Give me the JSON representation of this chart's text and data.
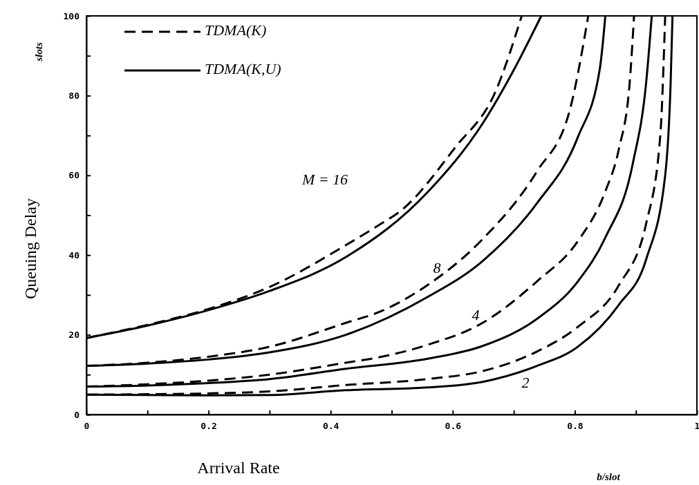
{
  "chart_data": {
    "type": "line",
    "xlabel": "Arrival Rate",
    "ylabel": "Queuing Delay",
    "xlim": [
      0,
      1
    ],
    "ylim": [
      0,
      100
    ],
    "xticks": [
      0,
      {
        "value": 0.1,
        "label": null
      },
      0.2,
      {
        "value": 0.3,
        "label": null
      },
      0.4,
      {
        "value": 0.5,
        "label": null
      },
      0.6,
      {
        "value": 0.7,
        "label": null
      },
      0.8,
      {
        "value": 0.9,
        "label": null
      },
      1
    ],
    "yticks": [
      0,
      {
        "value": 10,
        "label": null
      },
      20,
      {
        "value": 30,
        "label": null
      },
      40,
      {
        "value": 50,
        "label": null
      },
      60,
      {
        "value": 70,
        "label": null
      },
      80,
      {
        "value": 90,
        "label": null
      },
      100
    ],
    "grid": false,
    "legend": "top left",
    "marker": "none",
    "series": [
      {
        "name": "TDMA(K)",
        "color": "#000000",
        "line_style": "dashed",
        "x": [
          0,
          0.1,
          0.2,
          0.3,
          0.425,
          0.484,
          0.514,
          0.604,
          0.67,
          0.713
        ],
        "values": [
          19.2,
          22.5,
          26.5,
          32,
          42.5,
          48,
          51,
          67,
          81,
          100
        ]
      },
      {
        "name": "TDMA(K,U)",
        "color": "#000000",
        "line_style": "solid",
        "x": [
          0,
          0.1,
          0.2,
          0.3,
          0.425,
          0.559,
          0.649,
          0.702,
          0.745
        ],
        "values": [
          19.2,
          22.3,
          26.2,
          31,
          39.5,
          55.8,
          73,
          87,
          100
        ]
      },
      {
        "color": "#000000",
        "line_style": "dashed",
        "x": [
          0,
          0.1,
          0.2,
          0.3,
          0.425,
          0.484,
          0.559,
          0.649,
          0.738,
          0.792,
          0.822
        ],
        "values": [
          12.2,
          13,
          14.5,
          17,
          23,
          26,
          32.5,
          44,
          61,
          76.5,
          100
        ]
      },
      {
        "color": "#000000",
        "line_style": "solid",
        "x": [
          0,
          0.1,
          0.2,
          0.3,
          0.425,
          0.559,
          0.649,
          0.738,
          0.805,
          0.841,
          0.85
        ],
        "values": [
          12.2,
          12.8,
          13.8,
          15.6,
          20,
          29.5,
          38.5,
          53,
          69.6,
          86.8,
          100
        ]
      },
      {
        "color": "#000000",
        "line_style": "dashed",
        "x": [
          0,
          0.1,
          0.2,
          0.3,
          0.425,
          0.484,
          0.559,
          0.649,
          0.738,
          0.805,
          0.85,
          0.872,
          0.89,
          0.897
        ],
        "values": [
          7,
          7.6,
          8.5,
          10,
          13,
          14.5,
          17.5,
          23,
          33.4,
          43.5,
          56,
          66.5,
          83.5,
          100
        ]
      },
      {
        "color": "#000000",
        "line_style": "solid",
        "x": [
          0,
          0.1,
          0.2,
          0.3,
          0.425,
          0.559,
          0.649,
          0.738,
          0.805,
          0.85,
          0.895,
          0.917,
          0.926
        ],
        "values": [
          7,
          7.3,
          7.9,
          8.9,
          11.5,
          14,
          17.2,
          24,
          33.4,
          44.4,
          63,
          83.5,
          100
        ]
      },
      {
        "color": "#000000",
        "line_style": "dashed",
        "x": [
          0,
          0.1,
          0.2,
          0.3,
          0.425,
          0.559,
          0.649,
          0.738,
          0.805,
          0.872,
          0.917,
          0.94,
          0.948
        ],
        "values": [
          5,
          5.1,
          5.3,
          5.8,
          7.4,
          8.9,
          10.9,
          15.8,
          22,
          32.4,
          48,
          70,
          100
        ]
      },
      {
        "color": "#000000",
        "line_style": "solid",
        "x": [
          0,
          0.1,
          0.2,
          0.3,
          0.425,
          0.559,
          0.649,
          0.738,
          0.805,
          0.872,
          0.917,
          0.948,
          0.957,
          0.96
        ],
        "values": [
          5,
          4.9,
          4.8,
          4.9,
          6.1,
          6.8,
          8.2,
          12.2,
          17,
          27.5,
          39,
          60,
          83.5,
          100
        ]
      }
    ],
    "annotations": [
      "M = 16",
      "8",
      "4",
      "2",
      "slots",
      "b/slot"
    ]
  }
}
